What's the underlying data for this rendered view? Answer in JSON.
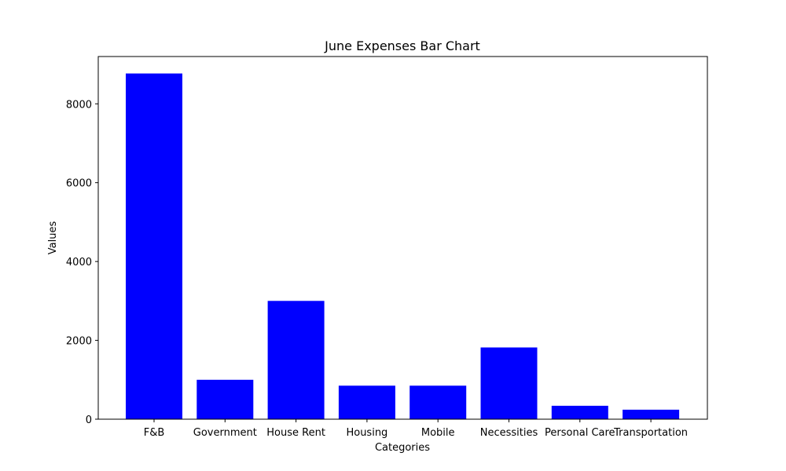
{
  "chart_data": {
    "type": "bar",
    "title": "June Expenses Bar Chart",
    "xlabel": "Categories",
    "ylabel": "Values",
    "categories": [
      "F&B",
      "Government",
      "House Rent",
      "Housing",
      "Mobile",
      "Necessities",
      "Personal Care",
      "Transportation"
    ],
    "values": [
      8770,
      1000,
      3000,
      850,
      850,
      1820,
      340,
      240
    ],
    "ylim": [
      0,
      9200
    ],
    "yticks": [
      0,
      2000,
      4000,
      6000,
      8000
    ],
    "bar_color": "#0000ff",
    "grid": false,
    "legend": "none"
  }
}
